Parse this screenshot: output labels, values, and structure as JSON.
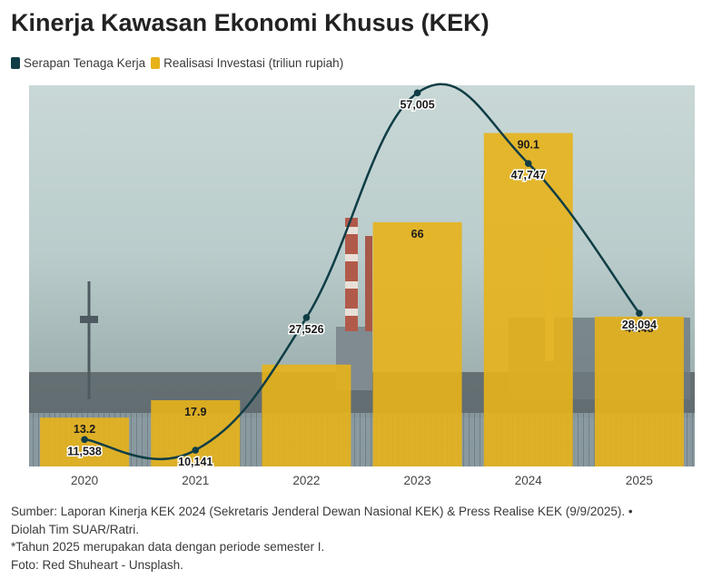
{
  "title": "Kinerja Kawasan Ekonomi Khusus (KEK)",
  "legend": [
    {
      "label": "Serapan Tenaga Kerja",
      "color": "#0f3d46"
    },
    {
      "label": "Realisasi Investasi (triliun rupiah)",
      "color": "#e7b219"
    }
  ],
  "colors": {
    "bar": "#e7b219",
    "line": "#0f3d46",
    "axis_text": "#444444"
  },
  "chart_data": {
    "type": "bar",
    "categories": [
      "2020",
      "2021",
      "2022",
      "2023",
      "2024",
      "2025"
    ],
    "series": [
      {
        "name": "Realisasi Investasi (triliun rupiah)",
        "type": "bar",
        "values": [
          13.2,
          17.9,
          27.526,
          66,
          90.1,
          40.48
        ],
        "labels": [
          "13.2",
          "17.9",
          "",
          "66",
          "90.1",
          "40.48"
        ]
      },
      {
        "name": "Serapan Tenaga Kerja",
        "type": "line",
        "values": [
          11538,
          10141,
          27526,
          57005,
          47747,
          28094
        ],
        "labels": [
          "11,538",
          "10,141",
          "27,526",
          "57,005",
          "47,747",
          "28,094"
        ]
      }
    ],
    "ylim_bar": [
      0,
      103
    ],
    "ylim_line": [
      8000,
      58000
    ]
  },
  "footer": [
    "Sumber: Laporan Kinerja KEK 2024 (Sekretaris Jenderal Dewan Nasional KEK) & Press Realise KEK (9/9/2025). •",
    "Diolah Tim SUAR/Ratri.",
    "*Tahun 2025 merupakan data dengan periode semester I.",
    "Foto: Red Shuheart - Unsplash."
  ]
}
